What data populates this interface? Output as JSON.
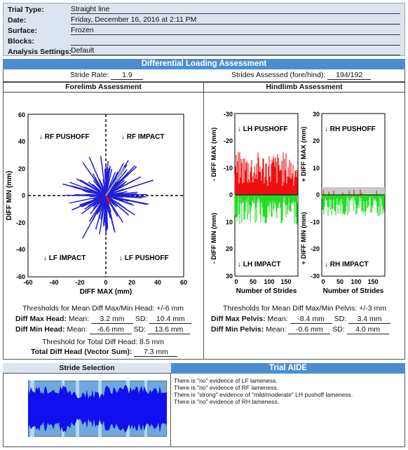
{
  "trial": {
    "rows": [
      {
        "label": "Trial Type:",
        "value": "Straight line"
      },
      {
        "label": "Date:",
        "value": "Friday, December 16, 2016 at 2:11 PM"
      },
      {
        "label": "Surface:",
        "value": "Frozen"
      },
      {
        "label": "Blocks:",
        "value": ""
      },
      {
        "label": "Analysis Settings:",
        "value": "Default"
      }
    ]
  },
  "dla": {
    "title": "Differential Loading Assessment",
    "stride_rate_label": "Stride Rate:",
    "stride_rate": "1.9",
    "strides_label": "Strides Assessed (fore/hind):",
    "strides": "194/192"
  },
  "forelimb": {
    "title": "Forelimb Assessment",
    "plot": {
      "q_tl": "↓ RF PUSHOFF",
      "q_tr": "↓ RF IMPACT",
      "q_bl": "↓ LF IMPACT",
      "q_br": "↓ LF PUSHOFF",
      "xlabel": "DIFF MAX (mm)",
      "ylabel": "DIFF MIN (mm)",
      "ticks": [
        "-60",
        "-40",
        "-20",
        "0",
        "20",
        "40",
        "60"
      ],
      "yticks": [
        "60",
        "40",
        "20",
        "0",
        "-20",
        "-40",
        "-60"
      ]
    },
    "threshold": "Thresholds for Mean Diff Max/Min Head: +/-6 mm",
    "max_label": "Diff Max Head:",
    "max_mean": "3.2 mm",
    "max_sd": "10.4 mm",
    "min_label": "Diff Min Head:",
    "min_mean": "-6.6 mm",
    "min_sd": "13.6 mm",
    "mean_label": "Mean:",
    "sd_label": "SD:",
    "total_threshold": "Threshold for Total Diff Head: 8.5 mm",
    "total_label": "Total Diff Head (Vector Sum):",
    "total_value": "7.3 mm"
  },
  "hindlimb": {
    "title": "Hindlimb Assessment",
    "left_plot": {
      "top_label": "↓ LH PUSHOFF",
      "bottom_label": "↓ LH IMPACT",
      "ylabel_top": "- DIFF MAX (mm)",
      "ylabel_bottom": "- DIFF MIN (mm)",
      "xlabel": "Number of Strides",
      "yticks": [
        "-30",
        "-20",
        "-10",
        "0",
        "10",
        "20",
        "30"
      ],
      "xticks": [
        "0",
        "50",
        "100",
        "150"
      ]
    },
    "right_plot": {
      "top_label": "↓ RH PUSHOFF",
      "bottom_label": "↓ RH IMPACT",
      "ylabel_top": "+ DIFF MAX (mm)",
      "ylabel_bottom": "+ DIFF MIN (mm)",
      "xlabel": "Number of Strides",
      "yticks": [
        "30",
        "20",
        "10",
        "0",
        "-10",
        "-20",
        "-30"
      ],
      "xticks": [
        "0",
        "50",
        "100",
        "150"
      ]
    },
    "threshold": "Thresholds for Mean Diff Max/Min Pelvis: +/-3 mm",
    "max_label": "Diff Max Pelvis:",
    "max_mean": "-8.4 mm",
    "max_sd": "3.4 mm",
    "min_label": "Diff Min Pelvis:",
    "min_mean": "-0.6 mm",
    "min_sd": "4.0 mm",
    "mean_label": "Mean:",
    "sd_label": "SD:"
  },
  "stride_selection": {
    "title": "Stride Selection"
  },
  "aide": {
    "title": "Trial AIDE",
    "lines": [
      "There is \"no\" evidence of LF lameness.",
      "There is \"no\" evidence of RF lameness.",
      "There is \"strong\" evidence of \"mild/moderate\" LH pushoff lameness.",
      "There is \"no\" evidence of RH lameness."
    ]
  },
  "colors": {
    "accent": "#4b8ed0",
    "header_bg": "#dbe4ef",
    "series_blue": "#1f1fd6",
    "series_red": "#ee1111",
    "series_green": "#22dd22"
  }
}
